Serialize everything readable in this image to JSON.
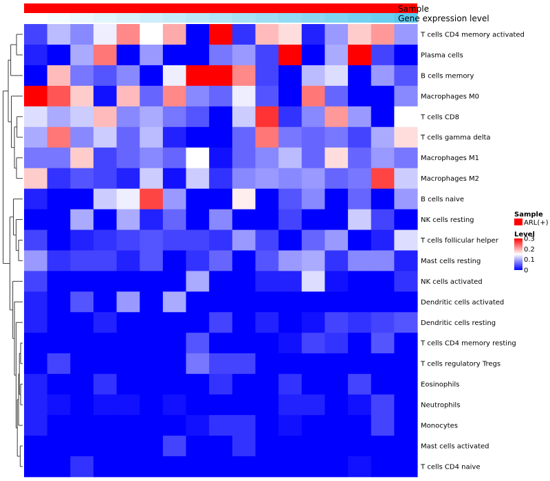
{
  "chart_data": {
    "type": "heatmap",
    "title": "",
    "annotation_labels": [
      "Sample",
      "Gene expression level"
    ],
    "annotation_sample_color": "#ff0000",
    "annotation_gene_gradient": [
      "#ffffff",
      "#5bc8ee"
    ],
    "rows": [
      "T cells CD4 memory activated",
      "Plasma cells",
      "B cells memory",
      "Macrophages M0",
      "T cells CD8",
      "T cells gamma delta",
      "Macrophages M1",
      "Macrophages M2",
      "B cells naive",
      "NK cells resting",
      "T cells follicular helper",
      "Mast cells resting",
      "NK cells activated",
      "Dendritic cells activated",
      "Dendritic cells resting",
      "T cells CD4 memory resting",
      "T cells regulatory  Tregs",
      "Eosinophils",
      "Neutrophils",
      "Monocytes",
      "Mast cells activated",
      "T cells CD4 naive"
    ],
    "values": [
      [
        0.04,
        0.11,
        0.08,
        0.14,
        0.22,
        0.15,
        0.2,
        0.0,
        0.3,
        0.03,
        0.19,
        0.17,
        0.02,
        0.09,
        0.18,
        0.21,
        0.09
      ],
      [
        0.02,
        0.0,
        0.1,
        0.23,
        0.0,
        0.09,
        0.0,
        0.0,
        0.07,
        0.09,
        0.04,
        0.3,
        0.0,
        0.1,
        0.3,
        0.04,
        0.0
      ],
      [
        0.0,
        0.19,
        0.07,
        0.05,
        0.08,
        0.0,
        0.14,
        0.3,
        0.3,
        0.22,
        0.04,
        0.0,
        0.11,
        0.13,
        0.0,
        0.09,
        0.05
      ],
      [
        0.3,
        0.25,
        0.18,
        0.01,
        0.19,
        0.06,
        0.22,
        0.08,
        0.06,
        0.14,
        0.05,
        0.0,
        0.23,
        0.06,
        0.0,
        0.0,
        0.08
      ],
      [
        0.13,
        0.1,
        0.12,
        0.19,
        0.08,
        0.1,
        0.07,
        0.05,
        0.0,
        0.12,
        0.27,
        0.03,
        0.08,
        0.21,
        0.09,
        0.0,
        0.15
      ],
      [
        0.1,
        0.23,
        0.08,
        0.12,
        0.06,
        0.11,
        0.02,
        0.0,
        0.0,
        0.06,
        0.23,
        0.07,
        0.06,
        0.07,
        0.04,
        0.1,
        0.17
      ],
      [
        0.07,
        0.07,
        0.18,
        0.04,
        0.06,
        0.08,
        0.06,
        0.15,
        0.01,
        0.06,
        0.08,
        0.11,
        0.06,
        0.17,
        0.06,
        0.09,
        0.07
      ],
      [
        0.18,
        0.03,
        0.05,
        0.04,
        0.02,
        0.12,
        0.01,
        0.12,
        0.03,
        0.08,
        0.09,
        0.08,
        0.09,
        0.06,
        0.07,
        0.26,
        0.12
      ],
      [
        0.02,
        0.0,
        0.0,
        0.12,
        0.14,
        0.26,
        0.09,
        0.0,
        0.0,
        0.16,
        0.0,
        0.05,
        0.08,
        0.0,
        0.06,
        0.0,
        0.09
      ],
      [
        0.0,
        0.0,
        0.1,
        0.0,
        0.1,
        0.02,
        0.06,
        0.0,
        0.08,
        0.0,
        0.0,
        0.04,
        0.0,
        0.0,
        0.12,
        0.04,
        0.0
      ],
      [
        0.04,
        0.0,
        0.02,
        0.03,
        0.04,
        0.05,
        0.04,
        0.04,
        0.03,
        0.09,
        0.04,
        0.0,
        0.06,
        0.09,
        0.0,
        0.02,
        0.13
      ],
      [
        0.09,
        0.03,
        0.04,
        0.04,
        0.02,
        0.05,
        0.0,
        0.03,
        0.06,
        0.0,
        0.05,
        0.09,
        0.1,
        0.03,
        0.08,
        0.08,
        0.02
      ],
      [
        0.04,
        0.0,
        0.0,
        0.0,
        0.0,
        0.0,
        0.0,
        0.1,
        0.0,
        0.0,
        0.02,
        0.02,
        0.13,
        0.01,
        0.0,
        0.0,
        0.03
      ],
      [
        0.02,
        0.0,
        0.05,
        0.0,
        0.09,
        0.0,
        0.1,
        0.0,
        0.0,
        0.0,
        0.0,
        0.0,
        0.0,
        0.0,
        0.0,
        0.0,
        0.0
      ],
      [
        0.02,
        0.0,
        0.0,
        0.02,
        0.0,
        0.0,
        0.0,
        0.0,
        0.04,
        0.0,
        0.02,
        0.0,
        0.01,
        0.04,
        0.03,
        0.04,
        0.05
      ],
      [
        0.0,
        0.0,
        0.0,
        0.0,
        0.0,
        0.0,
        0.0,
        0.05,
        0.0,
        0.0,
        0.0,
        0.01,
        0.04,
        0.03,
        0.0,
        0.05,
        0.0
      ],
      [
        0.0,
        0.04,
        0.0,
        0.0,
        0.0,
        0.0,
        0.0,
        0.07,
        0.04,
        0.04,
        0.0,
        0.0,
        0.0,
        0.0,
        0.0,
        0.0,
        0.0
      ],
      [
        0.02,
        0.0,
        0.0,
        0.03,
        0.0,
        0.0,
        0.0,
        0.0,
        0.03,
        0.0,
        0.0,
        0.03,
        0.0,
        0.0,
        0.04,
        0.0,
        0.0
      ],
      [
        0.02,
        0.01,
        0.0,
        0.01,
        0.01,
        0.0,
        0.01,
        0.0,
        0.0,
        0.0,
        0.0,
        0.02,
        0.02,
        0.0,
        0.01,
        0.04,
        0.0
      ],
      [
        0.02,
        0.0,
        0.0,
        0.0,
        0.0,
        0.0,
        0.0,
        0.01,
        0.03,
        0.03,
        0.0,
        0.01,
        0.0,
        0.0,
        0.0,
        0.04,
        0.0
      ],
      [
        0.0,
        0.0,
        0.0,
        0.0,
        0.0,
        0.0,
        0.04,
        0.0,
        0.0,
        0.03,
        0.0,
        0.0,
        0.0,
        0.0,
        0.0,
        0.0,
        0.0
      ],
      [
        0.0,
        0.0,
        0.03,
        0.0,
        0.0,
        0.0,
        0.0,
        0.0,
        0.0,
        0.0,
        0.0,
        0.0,
        0.0,
        0.0,
        0.01,
        0.0,
        0.0
      ]
    ],
    "gene_expression": [
      0.0,
      0.06,
      0.12,
      0.18,
      0.24,
      0.3,
      0.36,
      0.42,
      0.48,
      0.54,
      0.6,
      0.66,
      0.72,
      0.78,
      0.84,
      0.9,
      1.0
    ],
    "color_scale": {
      "min": 0,
      "max": 0.3,
      "low": "#0000ff",
      "mid": "#ffffff",
      "high": "#ff0000"
    },
    "legend": {
      "sample_title": "Sample",
      "sample_entry": "ARL(+)",
      "level_title": "Level",
      "ticks": [
        "0.3",
        "0.2",
        "0.1",
        "0"
      ],
      "placement": "right"
    }
  }
}
